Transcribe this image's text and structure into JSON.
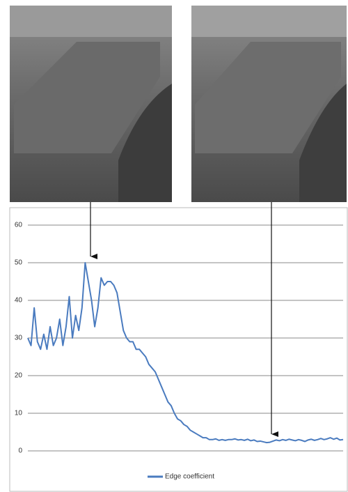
{
  "chart_data": {
    "type": "line",
    "series": [
      {
        "name": "Edge coefficient",
        "color": "#4a7bbf",
        "values": [
          30,
          28,
          38,
          29,
          27,
          31,
          27,
          33,
          28,
          30,
          35,
          28,
          33,
          41,
          30,
          36,
          32,
          38,
          50,
          45,
          40,
          33,
          38,
          46,
          44,
          45,
          45,
          44,
          42,
          37,
          32,
          30,
          29,
          29,
          27,
          27,
          26,
          25,
          23,
          22,
          21,
          19,
          17,
          15,
          13,
          12,
          10,
          8.5,
          8,
          7,
          6.5,
          5.5,
          5,
          4.5,
          4,
          3.5,
          3.5,
          3,
          3,
          3.2,
          2.8,
          3,
          2.8,
          3,
          3,
          3.2,
          2.9,
          3,
          2.8,
          3.1,
          2.7,
          2.9,
          2.5,
          2.6,
          2.4,
          2.2,
          2.3,
          2.6,
          2.9,
          2.7,
          3,
          2.8,
          3.1,
          2.9,
          2.7,
          3,
          2.8,
          2.5,
          2.9,
          3.1,
          2.8,
          3,
          3.3,
          3,
          3.2,
          3.5,
          3.1,
          3.4,
          2.9,
          3
        ]
      }
    ],
    "ylim": [
      0,
      60
    ],
    "yticks": [
      0,
      10,
      20,
      30,
      40,
      50,
      60
    ],
    "grid": true,
    "legend": "bottom"
  }
}
